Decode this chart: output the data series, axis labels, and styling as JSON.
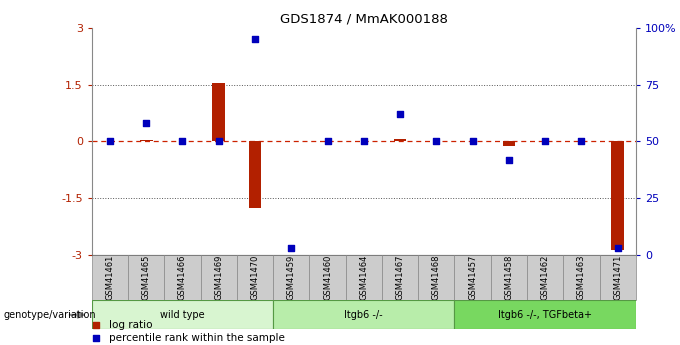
{
  "title": "GDS1874 / MmAK000188",
  "samples": [
    "GSM41461",
    "GSM41465",
    "GSM41466",
    "GSM41469",
    "GSM41470",
    "GSM41459",
    "GSM41460",
    "GSM41464",
    "GSM41467",
    "GSM41468",
    "GSM41457",
    "GSM41458",
    "GSM41462",
    "GSM41463",
    "GSM41471"
  ],
  "log_ratio": [
    0.0,
    0.05,
    0.0,
    1.55,
    -1.75,
    0.0,
    0.0,
    0.0,
    0.07,
    0.0,
    0.0,
    -0.12,
    0.0,
    0.0,
    -2.85
  ],
  "percentile_rank": [
    50,
    58,
    50,
    50,
    95,
    3,
    50,
    50,
    62,
    50,
    50,
    42,
    50,
    50,
    3
  ],
  "groups": [
    {
      "label": "wild type",
      "start": 0,
      "end": 5,
      "color": "#d8f5d0"
    },
    {
      "label": "Itgb6 -/-",
      "start": 5,
      "end": 10,
      "color": "#b8edaa"
    },
    {
      "label": "Itgb6 -/-, TGFbeta+",
      "start": 10,
      "end": 15,
      "color": "#78d860"
    }
  ],
  "left_ylim": [
    -3,
    3
  ],
  "left_yticks": [
    -3,
    -1.5,
    0,
    1.5,
    3
  ],
  "left_yticklabels": [
    "-3",
    "-1.5",
    "0",
    "1.5",
    "3"
  ],
  "right_yticklabels": [
    "0",
    "25",
    "50",
    "75",
    "100%"
  ],
  "bar_color": "#b22000",
  "dot_color": "#0000bb",
  "zero_line_color": "#cc2200",
  "dotted_line_color": "#555555",
  "bg_color": "#ffffff",
  "genotype_label": "genotype/variation",
  "legend_log_ratio": "log ratio",
  "legend_percentile": "percentile rank within the sample",
  "tick_box_color": "#cccccc",
  "tick_box_edge": "#888888"
}
